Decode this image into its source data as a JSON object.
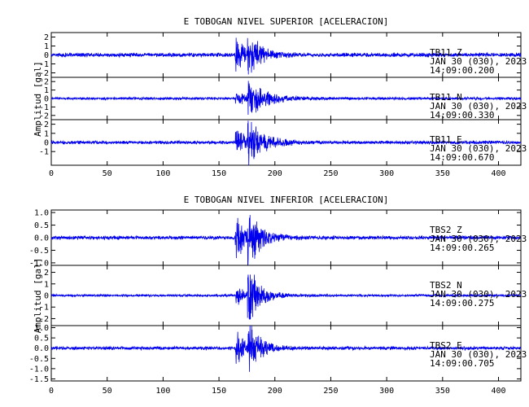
{
  "chart_data": [
    {
      "type": "line",
      "title": "E TOBOGAN NIVEL SUPERIOR [ACELERACION]",
      "ylabel": "Amplitud [gal]",
      "xlabel": "",
      "xlim": [
        0,
        420
      ],
      "x_ticks": [
        "0",
        "50",
        "100",
        "150",
        "200",
        "250",
        "300",
        "350",
        "400"
      ],
      "grid": false,
      "traces": [
        {
          "label_lines": [
            "TB11 Z",
            "JAN 30 (030), 2023",
            "14:09:00.200"
          ],
          "ylim": [
            -2.5,
            2.5
          ],
          "y_ticks": [
            "2",
            "1",
            "0",
            "-1",
            "-2"
          ],
          "noise": 0.22,
          "events": [
            {
              "t": 165,
              "amp": 2.3,
              "decay": 7
            },
            {
              "t": 176,
              "amp": 2.2,
              "decay": 11
            }
          ]
        },
        {
          "label_lines": [
            "TB11 N",
            "JAN 30 (030), 2023",
            "14:09:00.330"
          ],
          "ylim": [
            -2.5,
            2.5
          ],
          "y_ticks": [
            "2",
            "1",
            "0",
            "-1",
            "-2"
          ],
          "noise": 0.15,
          "events": [
            {
              "t": 165,
              "amp": 1.0,
              "decay": 8
            },
            {
              "t": 176,
              "amp": 2.0,
              "decay": 16
            }
          ]
        },
        {
          "label_lines": [
            "TB11 E",
            "JAN 30 (030), 2023",
            "14:09:00.670"
          ],
          "ylim": [
            -2.5,
            2.5
          ],
          "y_ticks": [
            "2",
            "1",
            "0",
            "-1"
          ],
          "noise": 0.18,
          "events": [
            {
              "t": 165,
              "amp": 1.6,
              "decay": 8
            },
            {
              "t": 176,
              "amp": 2.3,
              "decay": 14
            }
          ]
        }
      ]
    },
    {
      "type": "line",
      "title": "E TOBOGAN NIVEL INFERIOR [ACELERACION]",
      "ylabel": "Amplitud [gal]",
      "xlabel": "",
      "xlim": [
        0,
        420
      ],
      "x_ticks": [
        "0",
        "50",
        "100",
        "150",
        "200",
        "250",
        "300",
        "350",
        "400"
      ],
      "grid": false,
      "traces": [
        {
          "label_lines": [
            "TBS2 Z",
            "JAN 30 (030), 2023",
            "14:09:00.265"
          ],
          "ylim": [
            -1.1,
            1.1
          ],
          "y_ticks": [
            "1.0",
            "0.5",
            "0.0",
            "-0.5",
            "-1.0"
          ],
          "noise": 0.07,
          "events": [
            {
              "t": 165,
              "amp": 1.05,
              "decay": 7
            },
            {
              "t": 176,
              "amp": 0.95,
              "decay": 12
            }
          ]
        },
        {
          "label_lines": [
            "TBS2 N",
            "JAN 30 (030), 2023",
            "14:09:00.275"
          ],
          "ylim": [
            -2.6,
            2.6
          ],
          "y_ticks": [
            "2",
            "1",
            "0",
            "-1",
            "-2"
          ],
          "noise": 0.1,
          "events": [
            {
              "t": 165,
              "amp": 0.9,
              "decay": 7
            },
            {
              "t": 176,
              "amp": 2.6,
              "decay": 10
            }
          ]
        },
        {
          "label_lines": [
            "TBS2 E",
            "JAN 30 (030), 2023",
            "14:09:00.705"
          ],
          "ylim": [
            -1.6,
            1.1
          ],
          "y_ticks": [
            "1.0",
            "0.5",
            "0.0",
            "-0.5",
            "-1.0",
            "-1.5"
          ],
          "noise": 0.08,
          "events": [
            {
              "t": 165,
              "amp": 0.9,
              "decay": 7
            },
            {
              "t": 176,
              "amp": 1.2,
              "decay": 10
            }
          ]
        }
      ]
    }
  ],
  "colors": {
    "trace": "#0000ee",
    "axes": "#000000",
    "background": "#ffffff"
  }
}
